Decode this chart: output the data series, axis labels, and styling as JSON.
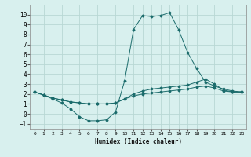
{
  "xlabel": "Humidex (Indice chaleur)",
  "background_color": "#d8f0ee",
  "grid_color": "#b8d8d4",
  "line_color": "#1a6b6b",
  "xlim": [
    -0.5,
    23.5
  ],
  "ylim": [
    -1.5,
    11.0
  ],
  "xticks": [
    0,
    1,
    2,
    3,
    4,
    5,
    6,
    7,
    8,
    9,
    10,
    11,
    12,
    13,
    14,
    15,
    16,
    17,
    18,
    19,
    20,
    21,
    22,
    23
  ],
  "yticks": [
    -1,
    0,
    1,
    2,
    3,
    4,
    5,
    6,
    7,
    8,
    9,
    10
  ],
  "series": [
    [
      2.2,
      1.9,
      1.5,
      1.1,
      0.5,
      -0.3,
      -0.7,
      -0.7,
      -0.6,
      0.2,
      3.3,
      8.5,
      9.9,
      9.8,
      9.9,
      10.2,
      8.5,
      6.2,
      4.6,
      3.2,
      2.8,
      2.5,
      2.3,
      2.2
    ],
    [
      2.2,
      1.9,
      1.6,
      1.4,
      1.2,
      1.1,
      1.0,
      1.0,
      1.0,
      1.1,
      1.5,
      2.0,
      2.3,
      2.5,
      2.6,
      2.7,
      2.8,
      2.9,
      3.2,
      3.5,
      3.0,
      2.4,
      2.2,
      2.2
    ],
    [
      2.2,
      1.9,
      1.6,
      1.4,
      1.2,
      1.1,
      1.0,
      1.0,
      1.0,
      1.1,
      1.5,
      1.8,
      2.0,
      2.1,
      2.2,
      2.3,
      2.4,
      2.5,
      2.7,
      2.8,
      2.6,
      2.3,
      2.2,
      2.2
    ]
  ]
}
